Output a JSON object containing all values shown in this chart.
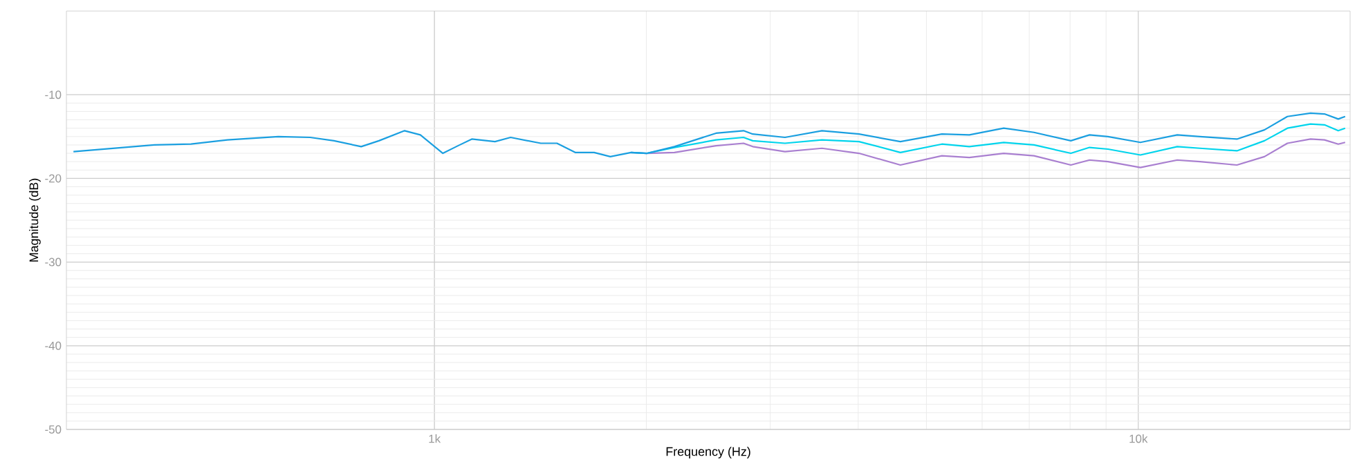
{
  "chart_data": {
    "type": "line",
    "xlabel": "Frequency (Hz)",
    "ylabel": "Magnitude (dB)",
    "log": "x",
    "grid": true,
    "marker": "none",
    "line_style": "solid",
    "xlim": [
      300,
      20000
    ],
    "xticks": [
      {
        "value": 1000,
        "label": "1k"
      },
      {
        "value": 10000,
        "label": "10k"
      }
    ],
    "ylim": [
      -50,
      0
    ],
    "yticks": [
      -50,
      -40,
      -30,
      -20,
      -10
    ],
    "x": [
      307,
      400,
      451,
      508,
      600,
      666,
      720,
      787,
      834,
      907,
      955,
      1028,
      1080,
      1130,
      1219,
      1283,
      1416,
      1493,
      1585,
      1686,
      1778,
      1903,
      2004,
      2193,
      2512,
      2749,
      2833,
      3148,
      3553,
      4011,
      4592,
      5260,
      5754,
      6440,
      7110,
      8020,
      8526,
      9057,
      10070,
      11360,
      12240,
      13810,
      15110,
      16290,
      17570,
      18390,
      19240,
      19680
    ],
    "series": [
      {
        "color": "#a97fd0",
        "x": [
          1903,
          2004,
          2193,
          2512,
          2749,
          2833,
          3148,
          3553,
          4011,
          4592,
          5260,
          5754,
          6440,
          7110,
          8020,
          8526,
          9057,
          10070,
          11360,
          12240,
          13810,
          15110,
          16290,
          17570,
          18390,
          19240,
          19680
        ],
        "values": [
          -16.9,
          -17.0,
          -16.9,
          -16.1,
          -15.8,
          -16.2,
          -16.8,
          -16.4,
          -17.0,
          -18.4,
          -17.3,
          -17.5,
          -17.0,
          -17.3,
          -18.4,
          -17.8,
          -18.0,
          -18.7,
          -17.8,
          -18.0,
          -18.4,
          -17.4,
          -15.8,
          -15.3,
          -15.4,
          -15.9,
          -15.7
        ]
      },
      {
        "color": "#00d4ec",
        "x": [
          1903,
          2004,
          2193,
          2512,
          2749,
          2833,
          3148,
          3553,
          4011,
          4592,
          5260,
          5754,
          6440,
          7110,
          8020,
          8526,
          9057,
          10070,
          11360,
          12240,
          13810,
          15110,
          16290,
          17570,
          18390,
          19240,
          19680
        ],
        "values": [
          -16.9,
          -17.0,
          -16.3,
          -15.4,
          -15.1,
          -15.5,
          -15.8,
          -15.4,
          -15.6,
          -16.9,
          -15.9,
          -16.2,
          -15.7,
          -16.0,
          -17.0,
          -16.3,
          -16.5,
          -17.2,
          -16.2,
          -16.4,
          -16.7,
          -15.5,
          -14.0,
          -13.5,
          -13.6,
          -14.3,
          -14.0
        ]
      },
      {
        "color": "#1a9fe0",
        "values": [
          -16.8,
          -16.0,
          -15.9,
          -15.4,
          -15.0,
          -15.1,
          -15.5,
          -16.2,
          -15.5,
          -14.3,
          -14.8,
          -17.0,
          -16.1,
          -15.3,
          -15.6,
          -15.1,
          -15.8,
          -15.8,
          -16.9,
          -16.9,
          -17.4,
          -16.9,
          -17.0,
          -16.2,
          -14.6,
          -14.3,
          -14.7,
          -15.1,
          -14.3,
          -14.7,
          -15.6,
          -14.7,
          -14.8,
          -14.0,
          -14.5,
          -15.5,
          -14.8,
          -15.0,
          -15.7,
          -14.8,
          -15.0,
          -15.3,
          -14.2,
          -12.6,
          -12.2,
          -12.3,
          -12.9,
          -12.6
        ]
      }
    ]
  }
}
